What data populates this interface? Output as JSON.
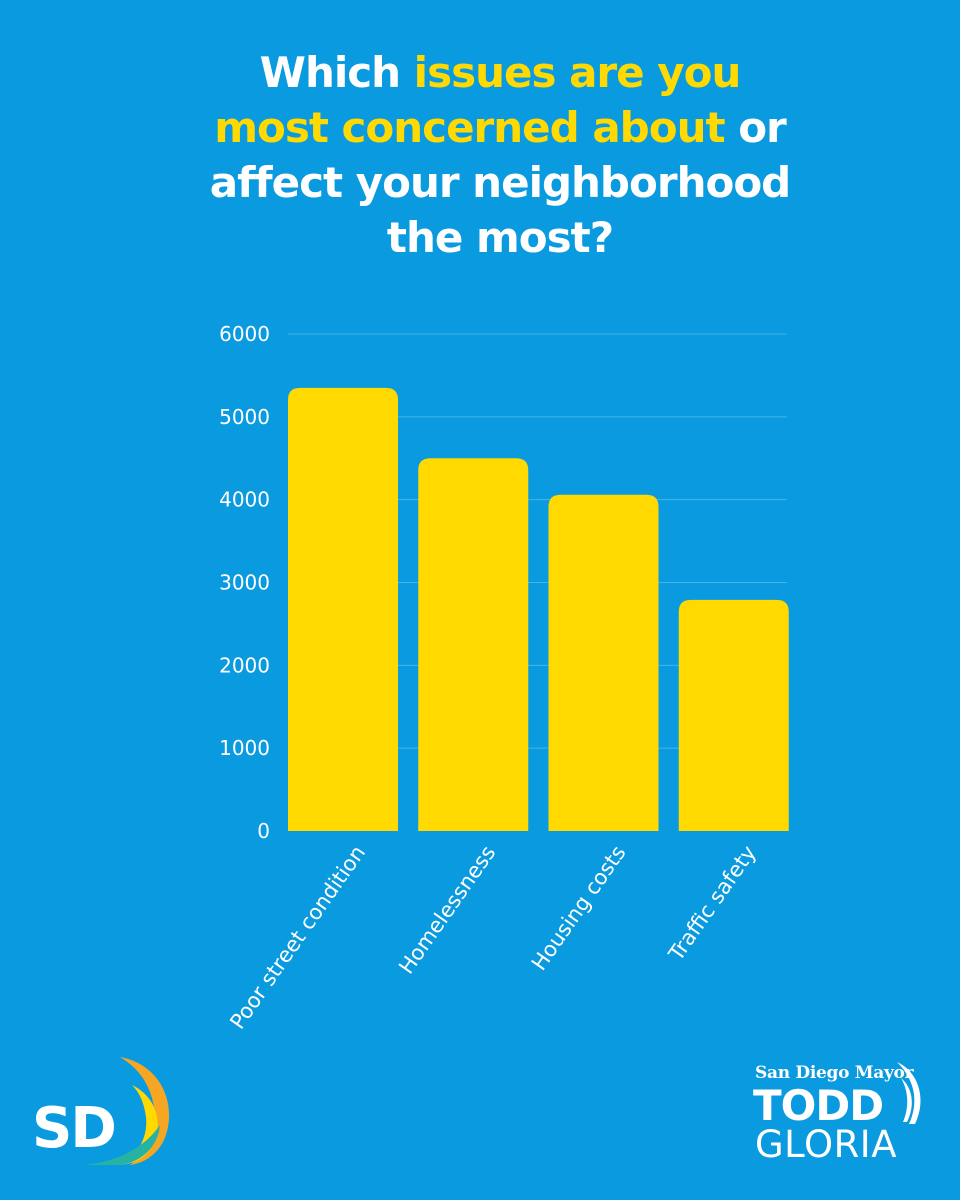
{
  "title": {
    "part1": "Which ",
    "part2": "issues are you most concerned about",
    "part3": " or affect your neighborhood the most?"
  },
  "colors": {
    "background": "#0a9ae0",
    "bar": "#ffd900",
    "highlight": "#ffd900",
    "text": "#ffffff"
  },
  "chart_data": {
    "type": "bar",
    "categories": [
      "Poor street condition",
      "Homelessness",
      "Housing costs",
      "Traffic safety"
    ],
    "values": [
      5350,
      4500,
      4060,
      2790
    ],
    "ylim": [
      0,
      6000
    ],
    "yticks": [
      0,
      1000,
      2000,
      3000,
      4000,
      5000,
      6000
    ],
    "grid": true,
    "legend": "none"
  },
  "logos": {
    "sd": {
      "text": "SD"
    },
    "mayor": {
      "line1": "San Diego Mayor",
      "line2": "TODD",
      "line3": "GLORIA"
    }
  }
}
